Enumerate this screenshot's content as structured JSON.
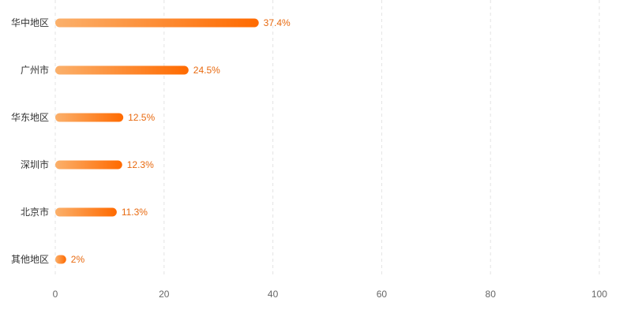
{
  "chart_data": {
    "type": "bar",
    "orientation": "horizontal",
    "categories": [
      "华中地区",
      "广州市",
      "华东地区",
      "深圳市",
      "北京市",
      "其他地区"
    ],
    "values": [
      37.4,
      24.5,
      12.5,
      12.3,
      11.3,
      2
    ],
    "value_labels": [
      "37.4%",
      "24.5%",
      "12.5%",
      "12.3%",
      "11.3%",
      "2%"
    ],
    "x_ticks": [
      "0",
      "20",
      "40",
      "60",
      "80",
      "100"
    ],
    "xlim": [
      0,
      100
    ],
    "grid": "vertical-dashed",
    "legend": "none"
  },
  "colors": {
    "bar_start": "#fbb06b",
    "bar_end": "#ff6a00",
    "value_text": "#e8690f",
    "grid": "#e3e3e3"
  }
}
